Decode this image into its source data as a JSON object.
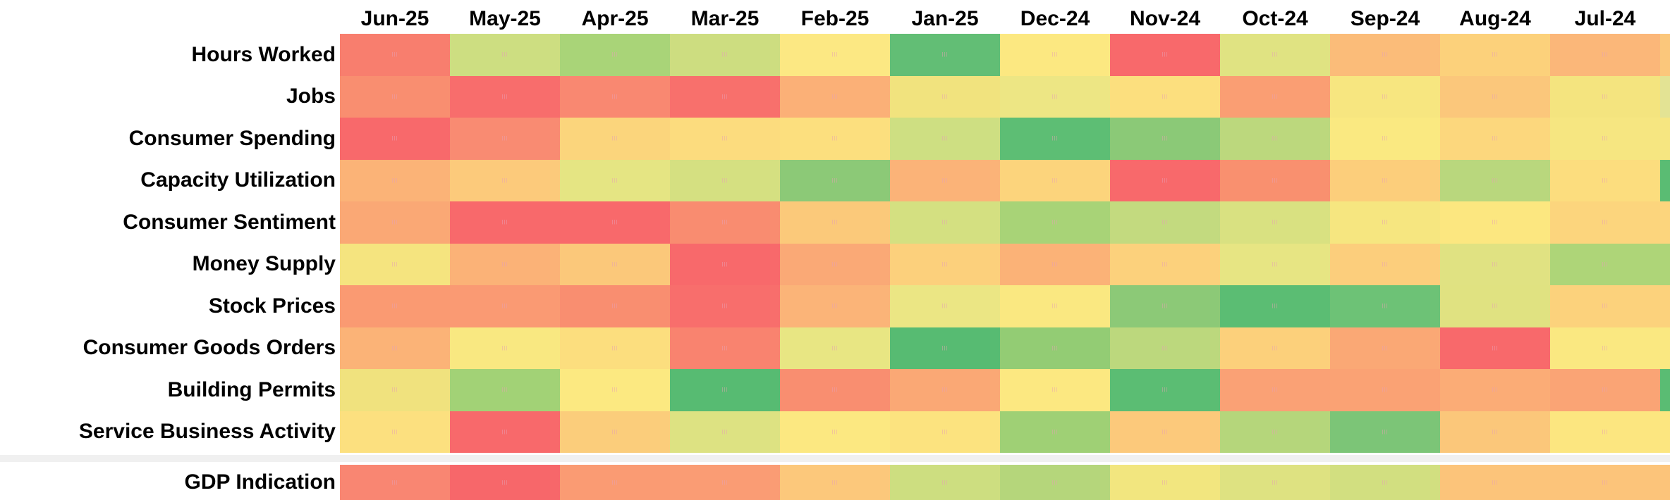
{
  "chart_data": {
    "type": "heatmap",
    "description": "Monthly economic indicator heatmap, red-yellow-green diverging scale, newest month (Jun-25) on the left",
    "columns": [
      "Jun-25",
      "May-25",
      "Apr-25",
      "Mar-25",
      "Feb-25",
      "Jan-25",
      "Dec-24",
      "Nov-24",
      "Oct-24",
      "Sep-24",
      "Aug-24",
      "Jul-24"
    ],
    "rows": [
      {
        "label": "Hours Worked",
        "colors": [
          "#F87E6E",
          "#CDDE81",
          "#A9D478",
          "#CDDD80",
          "#FCE883",
          "#62BE75",
          "#FCE881",
          "#F8696B",
          "#E0E382",
          "#FBBC79",
          "#FCD17B",
          "#FBB779"
        ]
      },
      {
        "label": "Jobs",
        "colors": [
          "#F98E70",
          "#F86D6C",
          "#F98871",
          "#F8706C",
          "#FBB077",
          "#F1E37E",
          "#EDE684",
          "#FCDF7E",
          "#FA9E73",
          "#F7E680",
          "#FBC77B",
          "#F4E47F"
        ]
      },
      {
        "label": "Consumer Spending",
        "colors": [
          "#F8696B",
          "#F98B72",
          "#FBD57C",
          "#FCDC7E",
          "#FCDF7E",
          "#CEDF82",
          "#5DBE74",
          "#8BC977",
          "#BCD87D",
          "#FAE981",
          "#FCD77D",
          "#F6E681"
        ]
      },
      {
        "label": "Capacity Utilization",
        "colors": [
          "#FBB377",
          "#FCCA7B",
          "#E5E583",
          "#D5E081",
          "#8CC977",
          "#FBB378",
          "#FCD47C",
          "#F8696B",
          "#F9906F",
          "#FCCE7B",
          "#B9D77D",
          "#FCDD7E"
        ]
      },
      {
        "label": "Consumer Sentiment",
        "colors": [
          "#FAA875",
          "#F8696B",
          "#F8696B",
          "#F98C70",
          "#FBC97A",
          "#D4E081",
          "#A8D377",
          "#C3DA7F",
          "#D9E181",
          "#F6E680",
          "#FCE780",
          "#FCD57D"
        ]
      },
      {
        "label": "Money Supply",
        "colors": [
          "#F5E47F",
          "#FBB277",
          "#FBC87A",
          "#F8696B",
          "#FAA976",
          "#FCD07C",
          "#FBB277",
          "#FCD17C",
          "#E7E583",
          "#FCCE7C",
          "#E0E282",
          "#AED578"
        ]
      },
      {
        "label": "Stock Prices",
        "colors": [
          "#FA9A72",
          "#FA9A73",
          "#F98E70",
          "#F86E6C",
          "#FBB478",
          "#EBE684",
          "#FAE881",
          "#8CC977",
          "#5BBD73",
          "#6DC276",
          "#E0E281",
          "#FCD27C"
        ]
      },
      {
        "label": "Consumer Goods Orders",
        "colors": [
          "#FBB377",
          "#F9E881",
          "#FCDE7E",
          "#F9836F",
          "#E8E683",
          "#57BB72",
          "#93CC74",
          "#BCD87D",
          "#FCD07B",
          "#FAA875",
          "#F8696B",
          "#FAE881"
        ]
      },
      {
        "label": "Building Permits",
        "colors": [
          "#F0E27E",
          "#A2D276",
          "#FCE981",
          "#57BB72",
          "#F98E70",
          "#FAA875",
          "#FCE881",
          "#5BBD73",
          "#FAA175",
          "#FAA274",
          "#FBAC76",
          "#FAA475"
        ]
      },
      {
        "label": "Service Business Activity",
        "colors": [
          "#FCE07F",
          "#F8696B",
          "#FBCD7B",
          "#DDE282",
          "#FCE881",
          "#FCE37F",
          "#9FD075",
          "#FCC97B",
          "#B5D67B",
          "#7CC577",
          "#FBC77A",
          "#FCE680"
        ]
      }
    ],
    "summary_row": {
      "label": "GDP Indication",
      "colors": [
        "#F98672",
        "#F7676A",
        "#FA9B73",
        "#FA9C74",
        "#FCC87B",
        "#CDDE80",
        "#B5D67B",
        "#F2E67F",
        "#DEE281",
        "#D2DF80",
        "#FCC47A",
        "#FCC47A"
      ]
    },
    "edge_sliver": {
      "row_colors": [
        "#FBC77B",
        "#E3E394",
        "#F6E681",
        "#5ABC73",
        "#FCD57D",
        "#AED578",
        "#FCD27C",
        "#FAE881",
        "#5ABC73",
        "#FCE680"
      ],
      "summary_color": "#FCC47A"
    },
    "color_scale": {
      "low": "#F8696B",
      "mid": "#FFEB84",
      "high": "#63BE7B",
      "meaning": "red = weak, yellow = neutral, green = strong"
    },
    "value_marks": "|||",
    "legend": "none",
    "grid": "off"
  },
  "layout_colors": {
    "background": "#FFFFFF",
    "divider_band": "#F0F0F0",
    "label_text": "#000000",
    "marks_text": "#E7A0B4"
  }
}
